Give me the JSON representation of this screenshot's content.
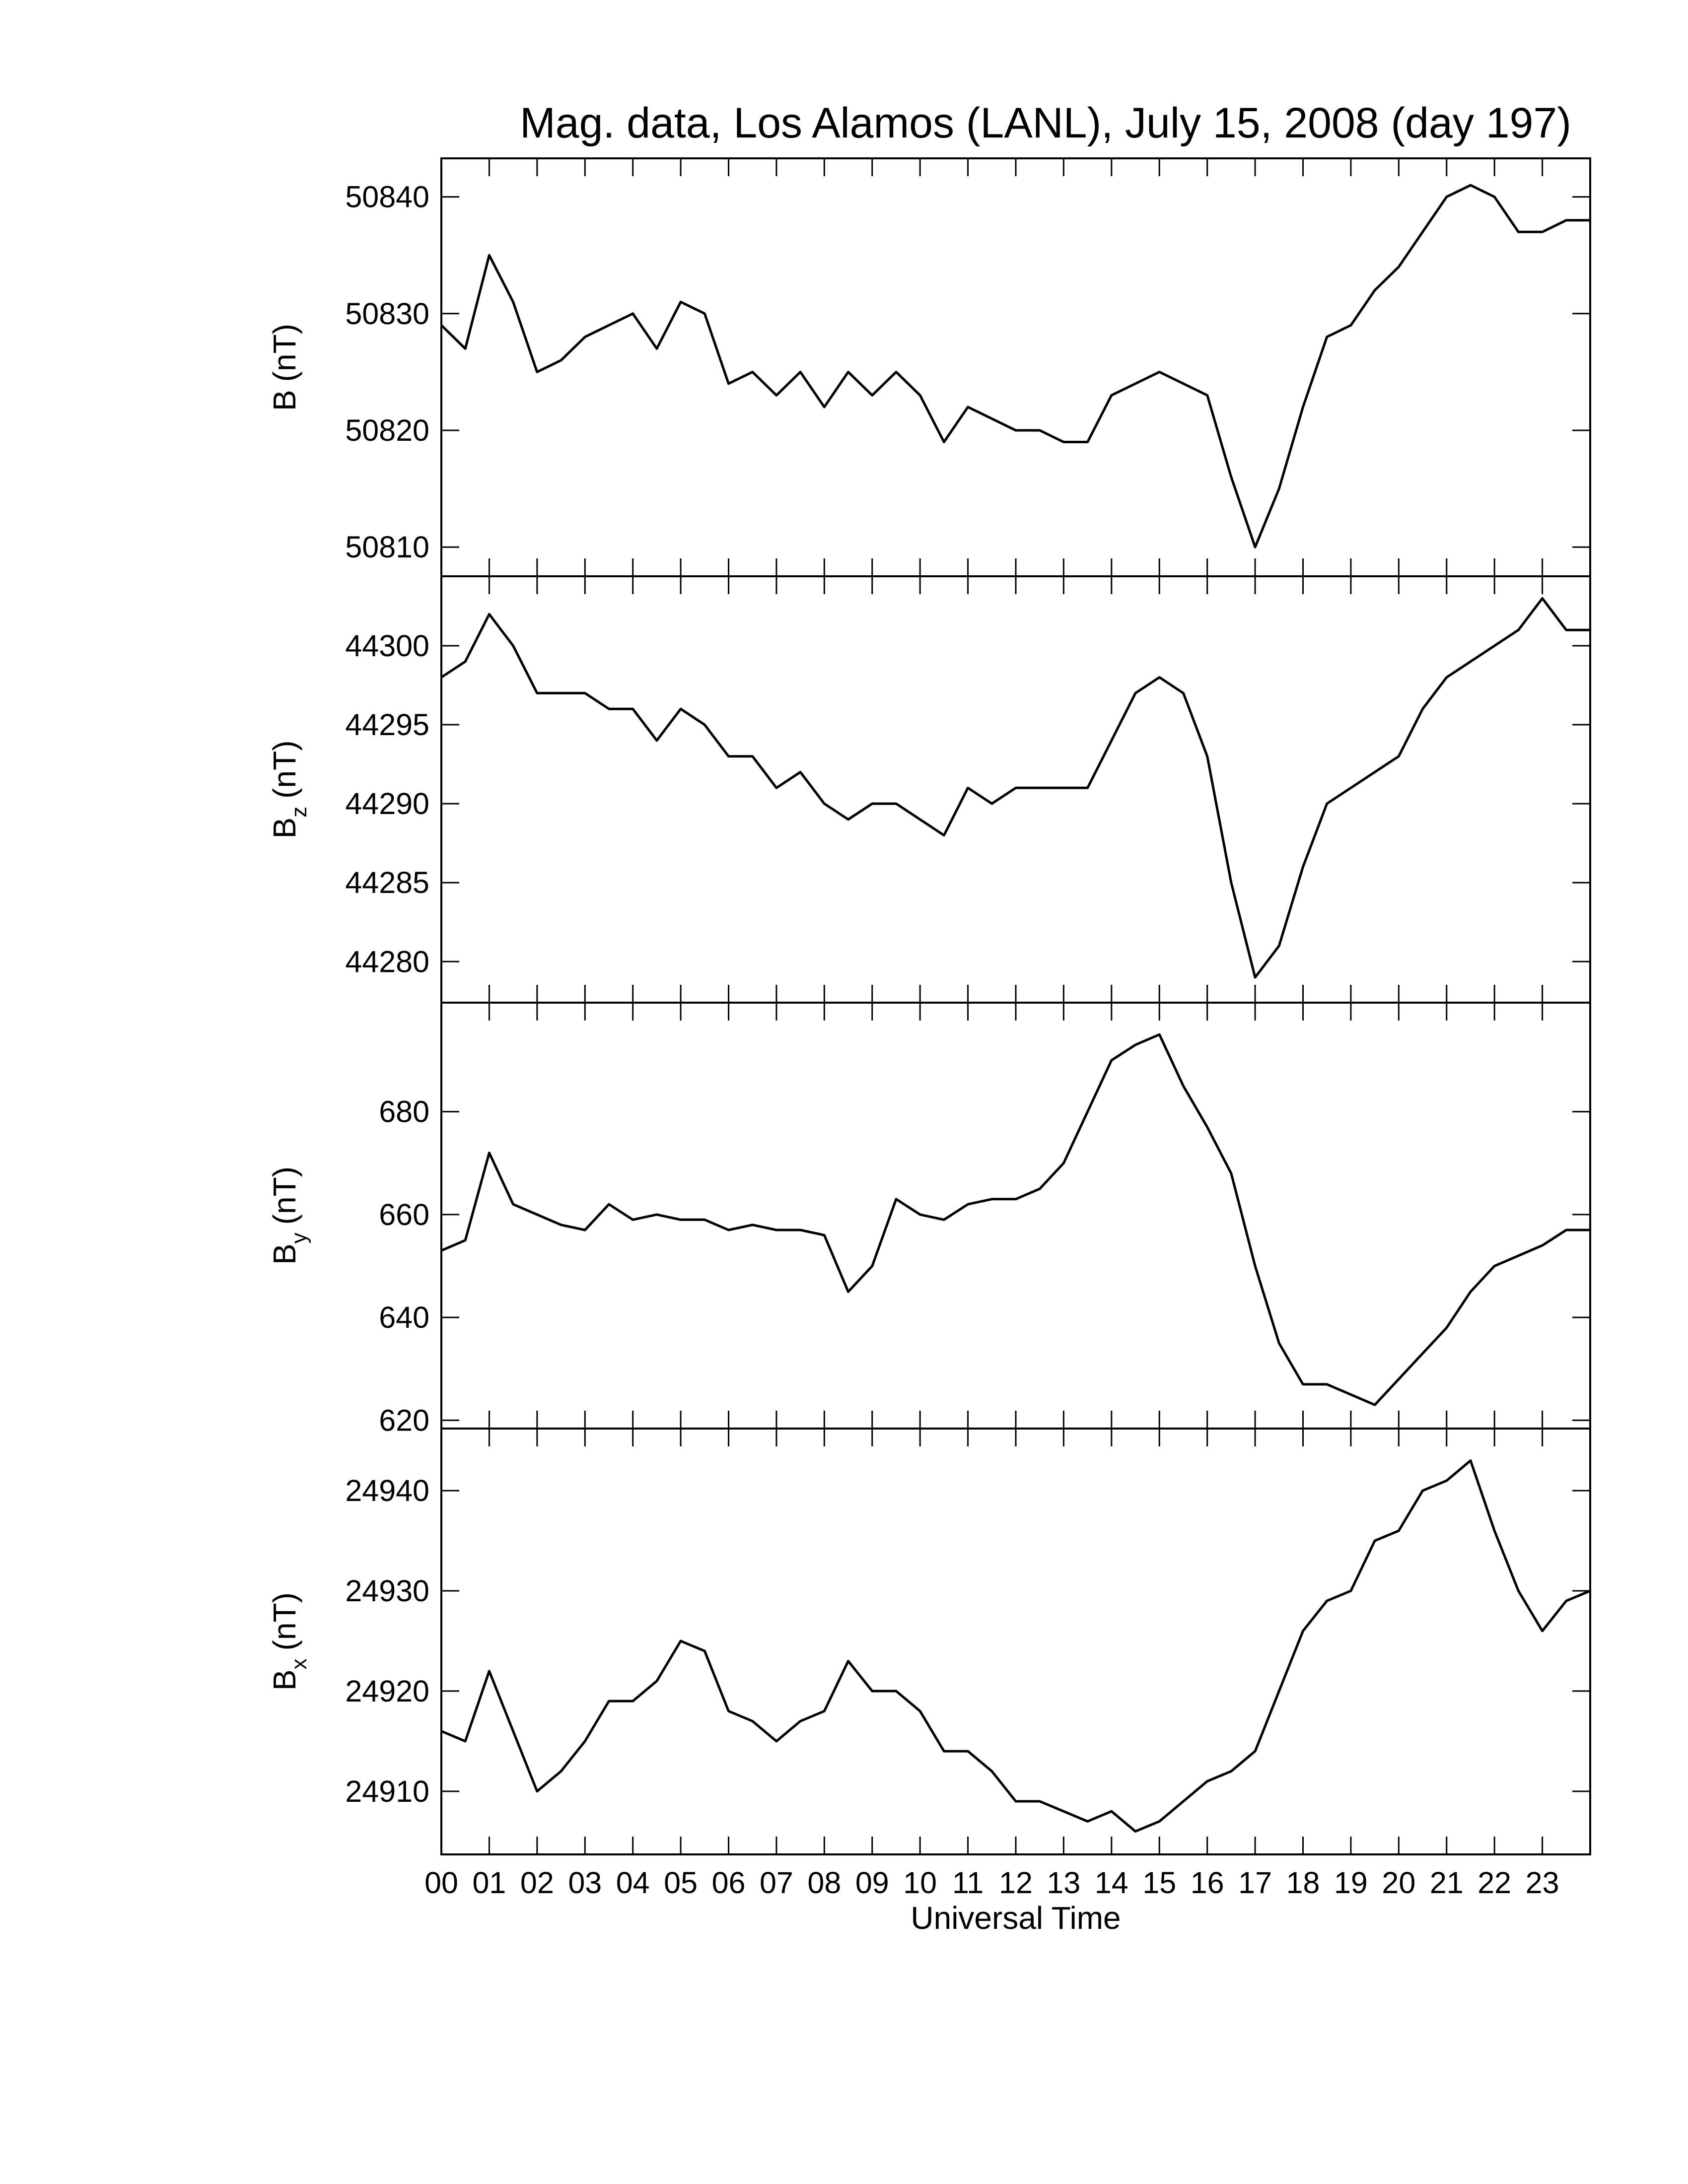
{
  "chart_data": [
    {
      "type": "line",
      "title": "Mag. data, Los Alamos (LANL), July 15, 2008 (day 197)",
      "y_label": "B",
      "y_label_unit": "(nT)",
      "x": [
        0,
        0.5,
        1,
        1.5,
        2,
        2.5,
        3,
        3.5,
        4,
        4.5,
        5,
        5.5,
        6,
        6.5,
        7,
        7.5,
        8,
        8.5,
        9,
        9.5,
        10,
        10.5,
        11,
        11.5,
        12,
        12.5,
        13,
        13.5,
        14,
        14.5,
        15,
        15.5,
        16,
        16.5,
        17,
        17.5,
        18,
        18.5,
        19,
        19.5,
        20,
        20.5,
        21,
        21.5,
        22,
        22.5,
        23,
        23.5,
        24
      ],
      "values": [
        50829,
        50827,
        50835,
        50831,
        50825,
        50826,
        50828,
        50829,
        50830,
        50827,
        50831,
        50830,
        50824,
        50825,
        50823,
        50825,
        50822,
        50825,
        50823,
        50825,
        50823,
        50819,
        50822,
        50821,
        50820,
        50820,
        50819,
        50819,
        50823,
        50824,
        50825,
        50824,
        50823,
        50816,
        50810,
        50815,
        50822,
        50828,
        50829,
        50832,
        50834,
        50837,
        50840,
        50841,
        50840,
        50837,
        50837,
        50838,
        50838
      ],
      "color": "#000000",
      "xlim": [
        0,
        24
      ],
      "ylim": [
        50807.5,
        50843.3
      ],
      "yticks": [
        50810,
        50820,
        50830,
        50840
      ]
    },
    {
      "type": "line",
      "y_label": "B",
      "y_label_subscript": "z",
      "y_label_unit": "(nT)",
      "x": [
        0,
        0.5,
        1,
        1.5,
        2,
        2.5,
        3,
        3.5,
        4,
        4.5,
        5,
        5.5,
        6,
        6.5,
        7,
        7.5,
        8,
        8.5,
        9,
        9.5,
        10,
        10.5,
        11,
        11.5,
        12,
        12.5,
        13,
        13.5,
        14,
        14.5,
        15,
        15.5,
        16,
        16.5,
        17,
        17.5,
        18,
        18.5,
        19,
        19.5,
        20,
        20.5,
        21,
        21.5,
        22,
        22.5,
        23,
        23.5,
        24
      ],
      "values": [
        44298,
        44299,
        44302,
        44300,
        44297,
        44297,
        44297,
        44296,
        44296,
        44294,
        44296,
        44295,
        44293,
        44293,
        44291,
        44292,
        44290,
        44289,
        44290,
        44290,
        44289,
        44288,
        44291,
        44290,
        44291,
        44291,
        44291,
        44291,
        44294,
        44297,
        44298,
        44297,
        44293,
        44285,
        44279,
        44281,
        44286,
        44290,
        44291,
        44292,
        44293,
        44296,
        44298,
        44299,
        44300,
        44301,
        44303,
        44301,
        44301
      ],
      "color": "#000000",
      "xlim": [
        0,
        24
      ],
      "ylim": [
        44277.4,
        44304.4
      ],
      "yticks": [
        44280,
        44285,
        44290,
        44295,
        44300
      ]
    },
    {
      "type": "line",
      "y_label": "B",
      "y_label_subscript": "y",
      "y_label_unit": "(nT)",
      "x": [
        0,
        0.5,
        1,
        1.5,
        2,
        2.5,
        3,
        3.5,
        4,
        4.5,
        5,
        5.5,
        6,
        6.5,
        7,
        7.5,
        8,
        8.5,
        9,
        9.5,
        10,
        10.5,
        11,
        11.5,
        12,
        12.5,
        13,
        13.5,
        14,
        14.5,
        15,
        15.5,
        16,
        16.5,
        17,
        17.5,
        18,
        18.5,
        19,
        19.5,
        20,
        20.5,
        21,
        21.5,
        22,
        22.5,
        23,
        23.5,
        24
      ],
      "values": [
        653,
        655,
        672,
        662,
        660,
        658,
        657,
        662,
        659,
        660,
        659,
        659,
        657,
        658,
        657,
        657,
        656,
        645,
        650,
        663,
        660,
        659,
        662,
        663,
        663,
        665,
        670,
        680,
        690,
        693,
        695,
        685,
        677,
        668,
        650,
        635,
        627,
        627,
        625,
        623,
        628,
        633,
        638,
        645,
        650,
        652,
        654,
        657,
        657
      ],
      "color": "#000000",
      "xlim": [
        0,
        24
      ],
      "ylim": [
        618.4,
        701.2
      ],
      "yticks": [
        620,
        640,
        660,
        680
      ]
    },
    {
      "type": "line",
      "y_label": "B",
      "y_label_subscript": "x",
      "y_label_unit": "(nT)",
      "x_label": "Universal Time",
      "x": [
        0,
        0.5,
        1,
        1.5,
        2,
        2.5,
        3,
        3.5,
        4,
        4.5,
        5,
        5.5,
        6,
        6.5,
        7,
        7.5,
        8,
        8.5,
        9,
        9.5,
        10,
        10.5,
        11,
        11.5,
        12,
        12.5,
        13,
        13.5,
        14,
        14.5,
        15,
        15.5,
        16,
        16.5,
        17,
        17.5,
        18,
        18.5,
        19,
        19.5,
        20,
        20.5,
        21,
        21.5,
        22,
        22.5,
        23,
        23.5,
        24
      ],
      "values": [
        24916,
        24915,
        24922,
        24916,
        24910,
        24912,
        24915,
        24919,
        24919,
        24921,
        24925,
        24924,
        24918,
        24917,
        24915,
        24917,
        24918,
        24923,
        24920,
        24920,
        24918,
        24914,
        24914,
        24912,
        24909,
        24909,
        24908,
        24907,
        24908,
        24906,
        24907,
        24909,
        24911,
        24912,
        24914,
        24920,
        24926,
        24929,
        24930,
        24935,
        24936,
        24940,
        24941,
        24943,
        24936,
        24930,
        24926,
        24929,
        24930
      ],
      "color": "#000000",
      "xlim": [
        0,
        24
      ],
      "ylim": [
        24903.7,
        24946.2
      ],
      "yticks": [
        24910,
        24920,
        24930,
        24940
      ],
      "xticks": [
        {
          "value": 0,
          "label": "00"
        },
        {
          "value": 1,
          "label": "01"
        },
        {
          "value": 2,
          "label": "02"
        },
        {
          "value": 3,
          "label": "03"
        },
        {
          "value": 4,
          "label": "04"
        },
        {
          "value": 5,
          "label": "05"
        },
        {
          "value": 6,
          "label": "06"
        },
        {
          "value": 7,
          "label": "07"
        },
        {
          "value": 8,
          "label": "08"
        },
        {
          "value": 9,
          "label": "09"
        },
        {
          "value": 10,
          "label": "10"
        },
        {
          "value": 11,
          "label": "11"
        },
        {
          "value": 12,
          "label": "12"
        },
        {
          "value": 13,
          "label": "13"
        },
        {
          "value": 14,
          "label": "14"
        },
        {
          "value": 15,
          "label": "15"
        },
        {
          "value": 16,
          "label": "16"
        },
        {
          "value": 17,
          "label": "17"
        },
        {
          "value": 18,
          "label": "18"
        },
        {
          "value": 19,
          "label": "19"
        },
        {
          "value": 20,
          "label": "20"
        },
        {
          "value": 21,
          "label": "21"
        },
        {
          "value": 22,
          "label": "22"
        },
        {
          "value": 23,
          "label": "23"
        }
      ]
    }
  ]
}
